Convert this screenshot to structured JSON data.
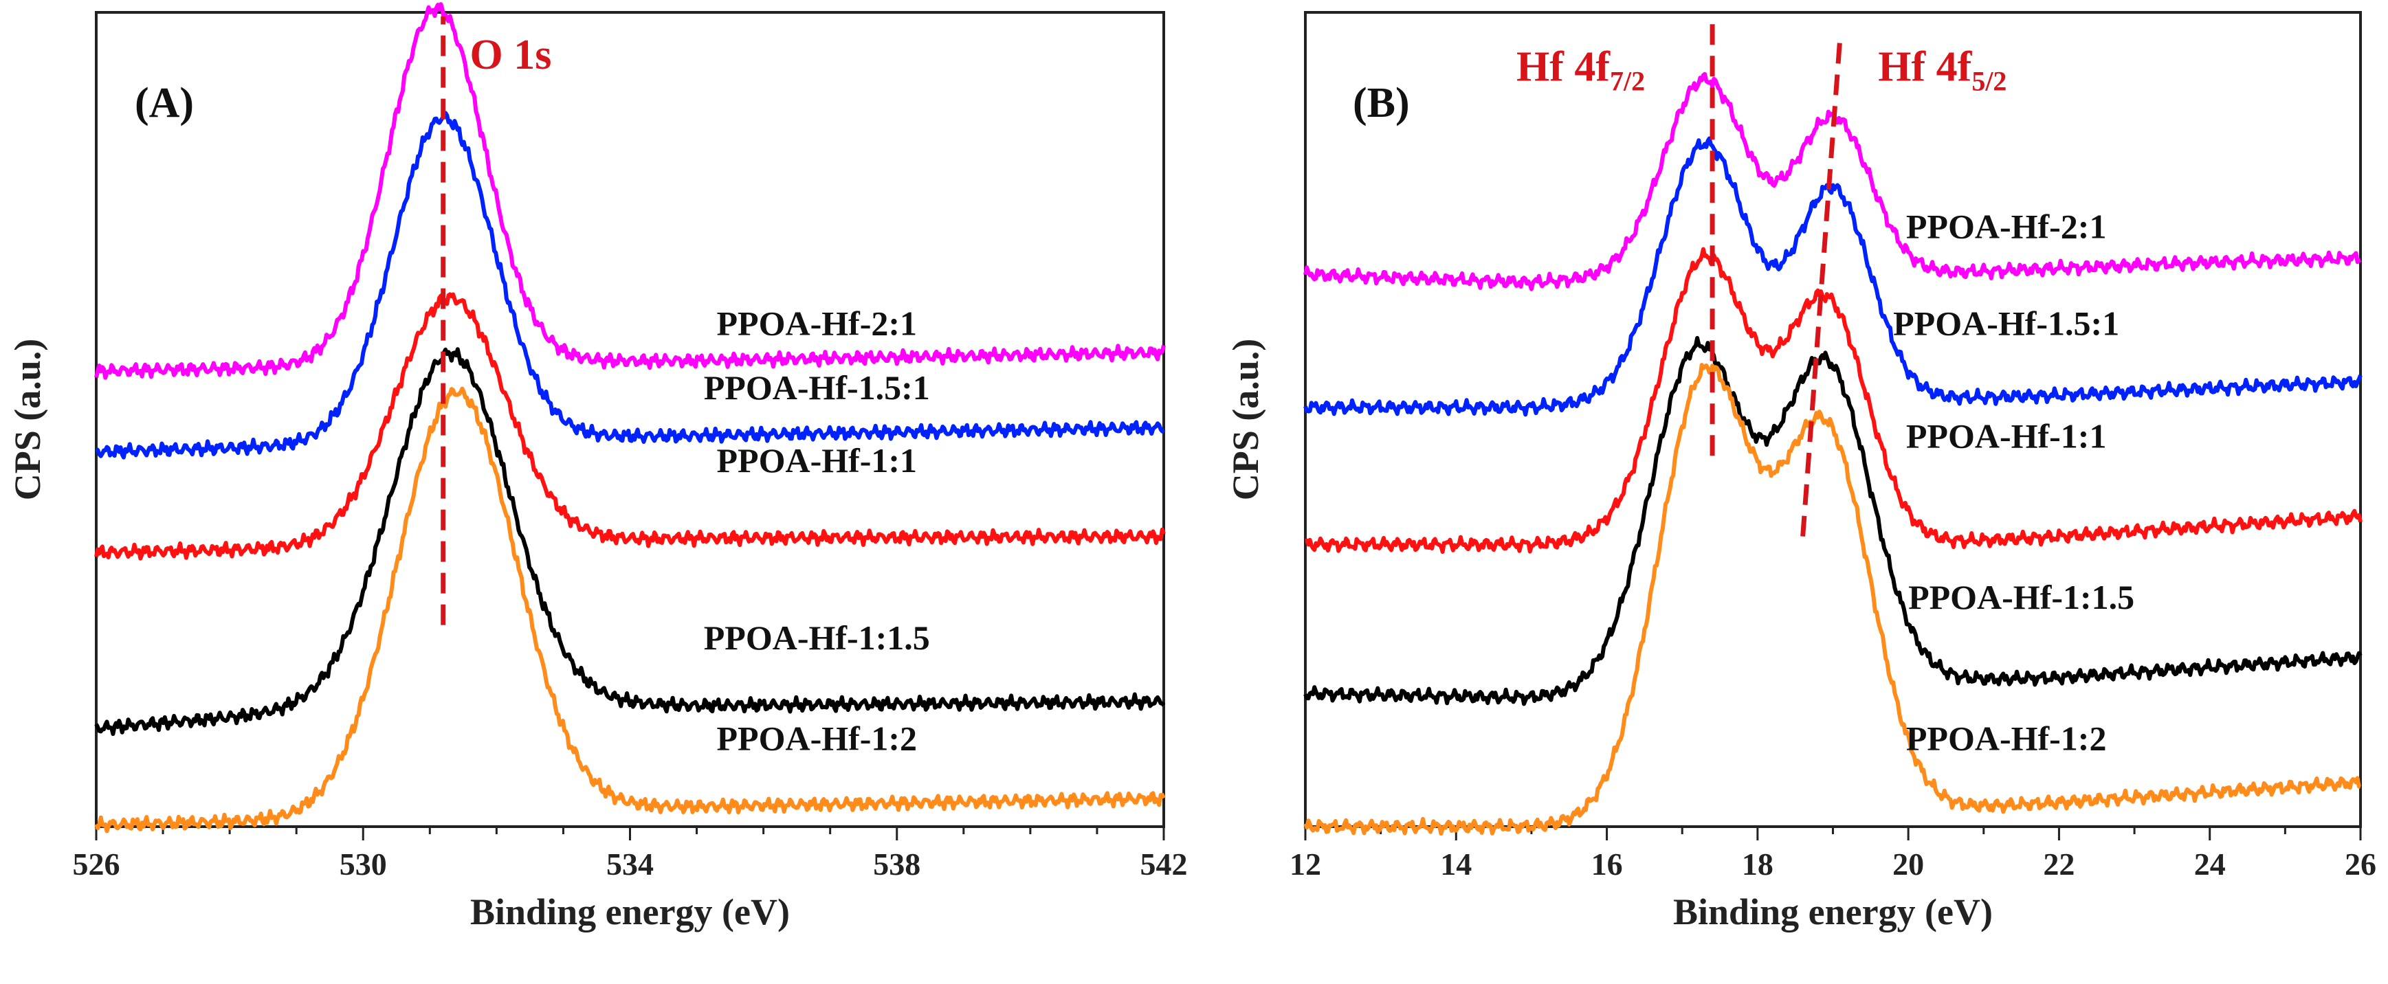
{
  "chart_data": [
    {
      "type": "line",
      "panel_label": "(A)",
      "xlabel": "Binding energy (eV)",
      "ylabel": "CPS (a.u.)",
      "xlim": [
        526,
        542
      ],
      "ylim": [
        0,
        10.1
      ],
      "xticks": [
        "526",
        "530",
        "534",
        "538",
        "542"
      ],
      "xtick_values": [
        526,
        530,
        534,
        538,
        542
      ],
      "minor_step": 1,
      "reference_lines": [
        {
          "x1": 531.2,
          "x2": 531.2,
          "y1": 2.5,
          "y2": 10.05,
          "color": "#d8141b"
        }
      ],
      "annotations": [
        {
          "text": "O 1s",
          "x": 531.6,
          "y": 9.4,
          "color": "#d8141b"
        }
      ],
      "series": [
        {
          "name": "PPOA-Hf-2:1",
          "color": "#ff00ff",
          "label_x": 536.8,
          "label_y": 6.1,
          "peaks": [
            {
              "x": 531.1,
              "h": 4.4,
              "s": 0.72
            }
          ],
          "points": [
            [
              526,
              5.65
            ],
            [
              529,
              5.7
            ],
            [
              532,
              5.77
            ],
            [
              535,
              5.78
            ],
            [
              542,
              5.88
            ]
          ]
        },
        {
          "name": "PPOA-Hf-1.5:1",
          "color": "#0022ff",
          "label_x": 536.8,
          "label_y": 5.3,
          "peaks": [
            {
              "x": 531.2,
              "h": 4.0,
              "s": 0.75
            }
          ],
          "points": [
            [
              526,
              4.65
            ],
            [
              529,
              4.72
            ],
            [
              532,
              4.82
            ],
            [
              535,
              4.85
            ],
            [
              542,
              4.95
            ]
          ]
        },
        {
          "name": "PPOA-Hf-1:1",
          "color": "#ff1111",
          "label_x": 536.8,
          "label_y": 4.4,
          "peaks": [
            {
              "x": 531.3,
              "h": 3.05,
              "s": 0.82
            }
          ],
          "points": [
            [
              526,
              3.4
            ],
            [
              529,
              3.45
            ],
            [
              532,
              3.53
            ],
            [
              535,
              3.58
            ],
            [
              542,
              3.6
            ]
          ]
        },
        {
          "name": "PPOA-Hf-1:1.5",
          "color": "#000000",
          "label_x": 536.8,
          "label_y": 2.2,
          "peaks": [
            {
              "x": 531.3,
              "h": 4.35,
              "s": 0.88
            }
          ],
          "points": [
            [
              526,
              1.22
            ],
            [
              529,
              1.42
            ],
            [
              532,
              1.55
            ],
            [
              535,
              1.5
            ],
            [
              542,
              1.55
            ]
          ]
        },
        {
          "name": "PPOA-Hf-1:2",
          "color": "#ff8c1a",
          "label_x": 536.8,
          "label_y": 0.95,
          "peaks": [
            {
              "x": 531.4,
              "h": 5.2,
              "s": 0.88
            }
          ],
          "points": [
            [
              526,
              0.02
            ],
            [
              529,
              0.08
            ],
            [
              532,
              0.22
            ],
            [
              535,
              0.25
            ],
            [
              542,
              0.35
            ]
          ]
        }
      ]
    },
    {
      "type": "line",
      "panel_label": "(B)",
      "xlabel": "Binding energy (eV)",
      "ylabel": "CPS (a.u.)",
      "xlim": [
        12,
        26
      ],
      "ylim": [
        0,
        10.1
      ],
      "xticks": [
        "12",
        "14",
        "16",
        "18",
        "20",
        "22",
        "24",
        "26"
      ],
      "xtick_values": [
        12,
        14,
        16,
        18,
        20,
        22,
        24,
        26
      ],
      "minor_step": 1,
      "reference_lines": [
        {
          "x1": 17.4,
          "x2": 17.4,
          "y1": 4.6,
          "y2": 10.0,
          "color": "#d8141b"
        },
        {
          "x1": 18.6,
          "x2": 19.1,
          "y1": 3.6,
          "y2": 9.85,
          "color": "#d8141b"
        }
      ],
      "annotations": [
        {
          "text": "Hf 4f",
          "sub": "7/2",
          "x": 14.8,
          "y": 9.25,
          "color": "#d8141b"
        },
        {
          "text": "Hf 4f",
          "sub": "5/2",
          "x": 19.6,
          "y": 9.25,
          "color": "#d8141b"
        }
      ],
      "series": [
        {
          "name": "PPOA-Hf-2:1",
          "color": "#ff00ff",
          "label_x": 21.3,
          "label_y": 7.3,
          "peaks": [
            {
              "x": 17.3,
              "h": 2.45,
              "s": 0.55
            },
            {
              "x": 19.0,
              "h": 1.95,
              "s": 0.5
            }
          ],
          "points": [
            [
              12,
              6.85
            ],
            [
              15,
              6.75
            ],
            [
              16,
              6.8
            ],
            [
              20,
              6.85
            ],
            [
              24,
              7.0
            ],
            [
              26,
              7.05
            ]
          ]
        },
        {
          "name": "PPOA-Hf-1.5:1",
          "color": "#0022ff",
          "label_x": 21.3,
          "label_y": 6.1,
          "peaks": [
            {
              "x": 17.3,
              "h": 3.2,
              "s": 0.58
            },
            {
              "x": 19.0,
              "h": 2.6,
              "s": 0.5
            }
          ],
          "points": [
            [
              12,
              5.2
            ],
            [
              15,
              5.2
            ],
            [
              16,
              5.25
            ],
            [
              20,
              5.3
            ],
            [
              22,
              5.35
            ],
            [
              26,
              5.52
            ]
          ]
        },
        {
          "name": "PPOA-Hf-1:1",
          "color": "#ff1111",
          "label_x": 21.3,
          "label_y": 4.7,
          "peaks": [
            {
              "x": 17.3,
              "h": 3.5,
              "s": 0.58
            },
            {
              "x": 18.9,
              "h": 3.0,
              "s": 0.55
            }
          ],
          "points": [
            [
              12,
              3.5
            ],
            [
              15,
              3.5
            ],
            [
              16,
              3.55
            ],
            [
              20,
              3.5
            ],
            [
              22,
              3.6
            ],
            [
              26,
              3.85
            ]
          ]
        },
        {
          "name": "PPOA-Hf-1:1.5",
          "color": "#000000",
          "label_x": 21.5,
          "label_y": 2.7,
          "peaks": [
            {
              "x": 17.2,
              "h": 4.2,
              "s": 0.62
            },
            {
              "x": 18.9,
              "h": 3.95,
              "s": 0.6
            }
          ],
          "points": [
            [
              12,
              1.65
            ],
            [
              15,
              1.6
            ],
            [
              16,
              1.65
            ],
            [
              20,
              1.8
            ],
            [
              22,
              1.85
            ],
            [
              26,
              2.1
            ]
          ]
        },
        {
          "name": "PPOA-Hf-1:2",
          "color": "#ff8c1a",
          "label_x": 21.3,
          "label_y": 0.95,
          "peaks": [
            {
              "x": 17.3,
              "h": 5.45,
              "s": 0.62
            },
            {
              "x": 18.9,
              "h": 4.7,
              "s": 0.6
            }
          ],
          "points": [
            [
              12,
              0.0
            ],
            [
              15,
              0.0
            ],
            [
              16,
              0.05
            ],
            [
              20,
              0.2
            ],
            [
              22,
              0.3
            ],
            [
              26,
              0.55
            ]
          ]
        }
      ]
    }
  ]
}
